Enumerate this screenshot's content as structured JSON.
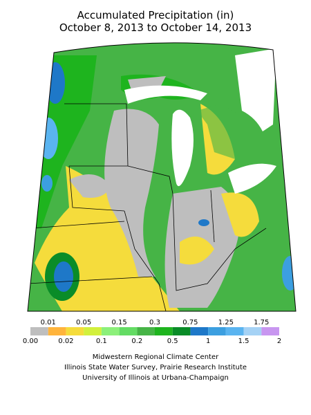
{
  "header": {
    "title": "Accumulated Precipitation (in)",
    "subtitle": "October 8, 2013 to October 14, 2013"
  },
  "legend": {
    "colors": [
      "#bebebe",
      "#ffb43c",
      "#f5dc3c",
      "#d2f03c",
      "#8cf07a",
      "#64dc64",
      "#46b446",
      "#1eb41e",
      "#0a8c28",
      "#1e78c8",
      "#3c9fe0",
      "#5ab4f0",
      "#a5d2f5",
      "#c896f0"
    ],
    "labels": [
      "0.00",
      "0.01",
      "0.02",
      "0.05",
      "0.1",
      "0.15",
      "0.2",
      "0.3",
      "0.5",
      "0.75",
      "1",
      "1.25",
      "1.5",
      "1.75",
      "2"
    ]
  },
  "credits": [
    "Midwestern Regional Climate Center",
    "Illinois State Water Survey, Prairie Research Institute",
    "University of Illinois at Urbana-Champaign"
  ]
}
